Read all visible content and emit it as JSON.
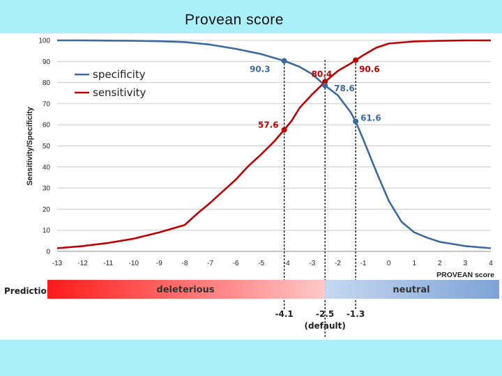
{
  "header": {
    "title": "Provean score"
  },
  "colors": {
    "band": "#aaf0f8",
    "specificity": "#3b6aa0",
    "sensitivity": "#c00000"
  },
  "chart_data": {
    "type": "line",
    "xlabel": "PROVEAN score",
    "ylabel": "Sensitivity/Specificity",
    "xlim": [
      -13,
      4
    ],
    "ylim": [
      0,
      100
    ],
    "x_ticks": [
      "-13",
      "-12",
      "-11",
      "-10",
      "-9",
      "-8",
      "-7",
      "-6",
      "-5",
      "-4",
      "-3",
      "-2",
      "-1",
      "0",
      "1",
      "2",
      "3",
      "4"
    ],
    "y_ticks": [
      "0",
      "10",
      "20",
      "30",
      "40",
      "50",
      "60",
      "70",
      "80",
      "90",
      "100"
    ],
    "grid": "horizontal",
    "legend_position": "top-left",
    "series": [
      {
        "name": "specificity",
        "color": "#3b6aa0",
        "x": [
          -13,
          -12,
          -11,
          -10,
          -9,
          -8,
          -7,
          -6,
          -5,
          -4.1,
          -3.5,
          -3,
          -2.5,
          -2,
          -1.5,
          -1.3,
          -1,
          -0.5,
          0,
          0.5,
          1,
          1.5,
          2,
          3,
          4
        ],
        "y": [
          100,
          100,
          99.9,
          99.8,
          99.6,
          99.2,
          98,
          96,
          93.5,
          90.3,
          87.5,
          84,
          78.6,
          74,
          66,
          61.6,
          53,
          38,
          24,
          14,
          9,
          6.5,
          4.5,
          2.5,
          1.5
        ]
      },
      {
        "name": "sensitivity",
        "color": "#c00000",
        "x": [
          -13,
          -12,
          -11,
          -10,
          -9,
          -8,
          -7.5,
          -7,
          -6.5,
          -6,
          -5.5,
          -5,
          -4.5,
          -4.1,
          -3.8,
          -3.5,
          -3,
          -2.5,
          -2,
          -1.5,
          -1.3,
          -1,
          -0.5,
          0,
          1,
          2,
          3,
          4
        ],
        "y": [
          1.5,
          2.5,
          4,
          6,
          9,
          12.5,
          18,
          23,
          28.5,
          34,
          40.5,
          46,
          52,
          57.6,
          62,
          68,
          74.5,
          80.4,
          85.5,
          89,
          90.6,
          93,
          96.5,
          98.5,
          99.5,
          99.8,
          100,
          100
        ]
      }
    ],
    "annotations": [
      {
        "x": -4.1,
        "y": 90.3,
        "label": "90.3",
        "series": "specificity"
      },
      {
        "x": -4.1,
        "y": 57.6,
        "label": "57.6",
        "series": "sensitivity"
      },
      {
        "x": -2.5,
        "y": 80.4,
        "label": "80.4",
        "series": "sensitivity"
      },
      {
        "x": -2.5,
        "y": 78.6,
        "label": "78.6",
        "series": "specificity"
      },
      {
        "x": -1.3,
        "y": 90.6,
        "label": "90.6",
        "series": "sensitivity"
      },
      {
        "x": -1.3,
        "y": 61.6,
        "label": "61.6",
        "series": "specificity"
      }
    ],
    "cutoffs": [
      {
        "x": -4.1,
        "label": "-4.1"
      },
      {
        "x": -2.5,
        "label": "-2.5",
        "sublabel": "(default)"
      },
      {
        "x": -1.3,
        "label": "-1.3"
      }
    ],
    "prediction": {
      "label": "Prediction:",
      "deleterious": "deleterious",
      "neutral": "neutral",
      "split": -2.5
    }
  }
}
